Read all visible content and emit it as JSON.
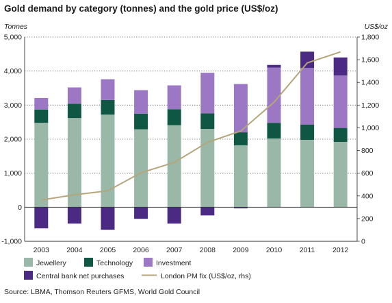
{
  "chart_data": {
    "type": "bar",
    "subtype": "stacked-bar-with-line-secondary-axis",
    "title": "Gold demand by category (tonnes) and the gold price (US$/oz)",
    "ylabel": "Tonnes",
    "y2label": "US$/oz",
    "ylim": [
      -1000,
      5000
    ],
    "y2lim": [
      0,
      1800
    ],
    "yticks": [
      "-1,000",
      "0",
      "1,000",
      "2,000",
      "3,000",
      "4,000",
      "5,000"
    ],
    "y2ticks": [
      "0",
      "200",
      "400",
      "600",
      "800",
      "1,000",
      "1,200",
      "1,400",
      "1,600",
      "1,800"
    ],
    "categories": [
      "2003",
      "2004",
      "2005",
      "2006",
      "2007",
      "2008",
      "2009",
      "2010",
      "2011",
      "2012"
    ],
    "grid": true,
    "legend_position": "bottom",
    "series": [
      {
        "name": "Jewellery",
        "kind": "bar",
        "color": "#9ab8a8",
        "values": [
          2480,
          2620,
          2720,
          2290,
          2410,
          2300,
          1820,
          2020,
          1980,
          1920
        ]
      },
      {
        "name": "Technology",
        "kind": "bar",
        "color": "#0f5742",
        "values": [
          390,
          420,
          430,
          460,
          470,
          460,
          380,
          460,
          450,
          410
        ]
      },
      {
        "name": "Investment",
        "kind": "bar",
        "color": "#9b77c4",
        "values": [
          340,
          480,
          610,
          690,
          700,
          1190,
          1420,
          1620,
          1660,
          1540
        ]
      },
      {
        "name": "Central bank net purchases",
        "kind": "bar",
        "color": "#4a2a83",
        "values": [
          -620,
          -480,
          -660,
          -340,
          -480,
          -240,
          -30,
          80,
          480,
          530
        ]
      },
      {
        "name": "London PM fix (US$/oz, rhs)",
        "kind": "line",
        "axis": "right",
        "color": "#b5a57a",
        "values": [
          364,
          410,
          445,
          604,
          695,
          872,
          972,
          1225,
          1572,
          1669
        ]
      }
    ],
    "source": "Source: LBMA, Thomson Reuters GFMS, World Gold Council"
  }
}
